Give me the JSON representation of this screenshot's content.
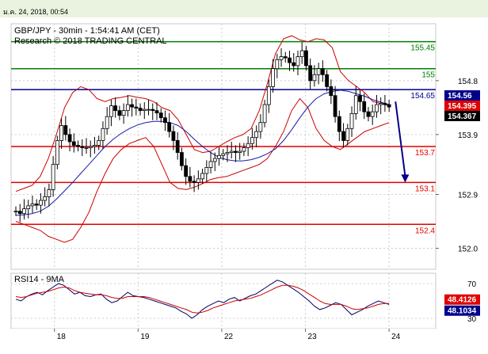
{
  "header": {
    "timestamp": "ม.ค. 24, 2018, 00:54"
  },
  "chart_data": [
    {
      "type": "candlestick",
      "title": "GBP/JPY - 30min - 1:54:41 AM (CET)",
      "subtitle": "Research © 2018 TRADING CENTRAL",
      "y_ticks": [
        "154.8",
        "153.9",
        "152.9",
        "152.0"
      ],
      "y_tick_values": [
        154.8,
        153.9,
        152.9,
        152.0
      ],
      "ylim": [
        151.65,
        155.75
      ],
      "x_ticks": [
        "18",
        "19",
        "22",
        "23",
        "24"
      ],
      "x_tick_bars": [
        12,
        38,
        64,
        90,
        116
      ],
      "bars_total": 130,
      "series": {
        "close": [
          152.62,
          152.58,
          152.66,
          152.71,
          152.74,
          152.72,
          152.8,
          152.86,
          152.98,
          153.4,
          153.8,
          154.05,
          153.9,
          153.78,
          153.72,
          153.7,
          153.68,
          153.68,
          153.7,
          153.72,
          153.8,
          154.0,
          154.2,
          154.38,
          154.3,
          154.22,
          154.3,
          154.4,
          154.36,
          154.34,
          154.3,
          154.32,
          154.32,
          154.3,
          154.26,
          154.18,
          154.1,
          153.95,
          153.8,
          153.6,
          153.38,
          153.2,
          153.12,
          153.1,
          153.16,
          153.25,
          153.35,
          153.45,
          153.5,
          153.55,
          153.58,
          153.6,
          153.62,
          153.6,
          153.62,
          153.68,
          153.75,
          153.85,
          153.95,
          154.1,
          154.4,
          154.7,
          155.0,
          155.15,
          155.2,
          155.18,
          155.1,
          155.05,
          155.2,
          155.3,
          155.05,
          154.8,
          154.9,
          155.0,
          154.9,
          154.7,
          154.55,
          154.2,
          153.95,
          153.8,
          154.0,
          154.25,
          154.55,
          154.45,
          154.28,
          154.2,
          154.28,
          154.4,
          154.42,
          154.4,
          154.36
        ],
        "bb_upper": [
          152.95,
          153.0,
          153.05,
          153.2,
          153.5,
          153.9,
          154.35,
          154.6,
          154.7,
          154.65,
          154.5,
          154.45,
          154.5,
          154.52,
          154.55,
          154.52,
          154.5,
          154.45,
          154.35,
          154.3,
          154.15,
          153.9,
          153.65,
          153.6,
          153.62,
          153.7,
          153.78,
          153.85,
          153.9,
          154.0,
          154.3,
          154.75,
          155.25,
          155.5,
          155.55,
          155.48,
          155.45,
          155.5,
          155.48,
          155.35,
          154.95,
          154.8,
          154.7,
          154.6,
          154.45,
          154.42,
          154.38
        ],
        "bb_lower": [
          152.45,
          152.4,
          152.35,
          152.3,
          152.2,
          152.15,
          152.1,
          152.15,
          152.35,
          152.6,
          152.95,
          153.25,
          153.5,
          153.65,
          153.75,
          153.8,
          153.85,
          153.7,
          153.4,
          153.1,
          153.0,
          152.98,
          153.02,
          153.08,
          153.15,
          153.18,
          153.2,
          153.25,
          153.3,
          153.35,
          153.4,
          153.5,
          153.7,
          153.95,
          154.3,
          154.5,
          154.35,
          154.0,
          153.8,
          153.7,
          153.65,
          153.75,
          153.85,
          153.95,
          154.0,
          154.05,
          154.1
        ],
        "ma": [
          152.55,
          152.56,
          152.58,
          152.62,
          152.7,
          152.82,
          152.96,
          153.1,
          153.25,
          153.4,
          153.55,
          153.7,
          153.82,
          153.92,
          154.0,
          154.06,
          154.1,
          154.12,
          154.12,
          154.1,
          154.05,
          153.95,
          153.82,
          153.7,
          153.6,
          153.52,
          153.48,
          153.46,
          153.46,
          153.48,
          153.52,
          153.58,
          153.66,
          153.8,
          153.98,
          154.18,
          154.36,
          154.5,
          154.58,
          154.62,
          154.64,
          154.62,
          154.58,
          154.54,
          154.48,
          154.44,
          154.4
        ]
      },
      "levels": [
        {
          "value": 155.45,
          "label": "155.45",
          "color": "#008000"
        },
        {
          "value": 155.0,
          "label": "155",
          "color": "#008000"
        },
        {
          "value": 154.65,
          "label": "154.65",
          "color": "#00008b"
        },
        {
          "value": 153.7,
          "label": "153.7",
          "color": "#e00000"
        },
        {
          "value": 153.1,
          "label": "153.1",
          "color": "#e00000"
        },
        {
          "value": 152.4,
          "label": "152.4",
          "color": "#e00000"
        }
      ],
      "price_tags": [
        {
          "value": 154.56,
          "label": "154.56",
          "bg": "#00008b",
          "fg": "#ffffff"
        },
        {
          "value": 154.395,
          "label": "154.395",
          "bg": "#e00000",
          "fg": "#ffffff"
        },
        {
          "value": 154.367,
          "label": "154.367",
          "bg": "#000000",
          "fg": "#ffffff"
        }
      ],
      "forecast_arrow": {
        "from_bar": 118,
        "from_value": 154.45,
        "to_bar": 121,
        "to_value": 153.1,
        "color": "#00008b"
      }
    },
    {
      "type": "line",
      "title": "RSI14 - 9MA",
      "ylim": [
        18,
        82
      ],
      "y_ticks": [
        "70",
        "30"
      ],
      "y_tick_values": [
        70,
        30
      ],
      "series": [
        {
          "name": "RSI14",
          "color": "#000066",
          "values": [
            52,
            50,
            55,
            58,
            60,
            57,
            62,
            66,
            70,
            68,
            63,
            58,
            60,
            56,
            55,
            57,
            58,
            52,
            48,
            50,
            55,
            60,
            56,
            55,
            54,
            52,
            50,
            48,
            46,
            44,
            42,
            38,
            35,
            30,
            34,
            40,
            44,
            47,
            50,
            48,
            52,
            54,
            50,
            53,
            56,
            58,
            62,
            66,
            70,
            74,
            72,
            68,
            64,
            60,
            55,
            50,
            44,
            40,
            42,
            45,
            48,
            46,
            40,
            34,
            37,
            40,
            44,
            47,
            50,
            48,
            46
          ]
        },
        {
          "name": "9MA",
          "color": "#cc0000",
          "values": [
            55,
            54,
            55,
            57,
            59,
            60,
            61,
            63,
            65,
            66,
            65,
            62,
            60,
            59,
            58,
            57,
            57,
            56,
            54,
            53,
            53,
            55,
            55,
            55,
            55,
            54,
            52,
            50,
            48,
            46,
            44,
            42,
            40,
            37,
            36,
            37,
            39,
            42,
            44,
            46,
            48,
            50,
            51,
            52,
            53,
            55,
            57,
            60,
            63,
            66,
            68,
            68,
            67,
            65,
            62,
            58,
            54,
            50,
            47,
            46,
            46,
            46,
            44,
            41,
            40,
            41,
            42,
            44,
            46,
            47,
            47
          ]
        }
      ],
      "value_tags": [
        {
          "value": 48.4126,
          "label": "48.4126",
          "bg": "#e00000",
          "fg": "#ffffff"
        },
        {
          "value": 48.1034,
          "label": "48.1034",
          "bg": "#00008b",
          "fg": "#ffffff"
        }
      ]
    }
  ]
}
